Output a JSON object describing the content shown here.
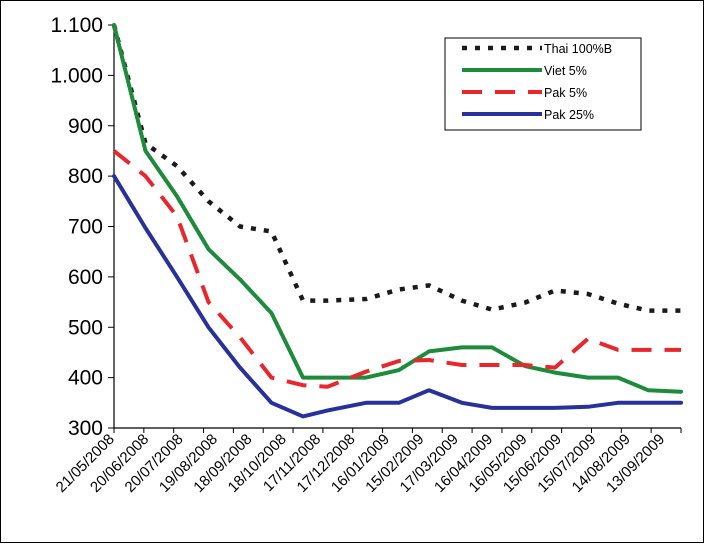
{
  "chart_data": {
    "type": "line",
    "title": "",
    "xlabel": "",
    "ylabel": "",
    "ylim": [
      300,
      1100
    ],
    "yticks": [
      300,
      400,
      500,
      600,
      700,
      800,
      900,
      1000,
      1100
    ],
    "ytick_labels": [
      "300",
      "400",
      "500",
      "600",
      "700",
      "800",
      "900",
      "1.000",
      "1.100"
    ],
    "categories": [
      "21/05/2008",
      "20/06/2008",
      "20/07/2008",
      "19/08/2008",
      "18/09/2008",
      "18/10/2008",
      "17/11/2008",
      "17/12/2008",
      "16/01/2009",
      "15/02/2009",
      "17/03/2009",
      "16/04/2009",
      "16/05/2009",
      "15/06/2009",
      "15/07/2009",
      "14/08/2009",
      "13/09/2009"
    ],
    "x_index": [
      0,
      1.15,
      2.3,
      3.45,
      4.6,
      5.75,
      6.9,
      7.8,
      9.2,
      10.4,
      11.5,
      12.7,
      13.8,
      15.0,
      16.1,
      17.3,
      18.4,
      19.5,
      20.7
    ],
    "legend_position": "top-right",
    "grid": false,
    "series": [
      {
        "name": "Thai 100%B",
        "color": "#1a1a1a",
        "style": "dotted",
        "x": [
          0,
          1.15,
          2.3,
          3.45,
          4.6,
          5.75,
          6.9,
          7.8,
          9.2,
          10.4,
          11.5,
          12.7,
          13.8,
          15.0,
          16.1,
          17.3,
          18.4,
          19.5,
          20.7
        ],
        "values": [
          1100,
          865,
          820,
          750,
          700,
          690,
          553,
          553,
          556,
          575,
          583,
          553,
          535,
          549,
          573,
          566,
          547,
          533,
          533
        ]
      },
      {
        "name": "Viet 5%",
        "color": "#1e8a3c",
        "style": "solid",
        "x": [
          0,
          1.15,
          2.3,
          3.45,
          4.6,
          5.75,
          6.9,
          7.8,
          9.2,
          10.4,
          11.5,
          12.7,
          13.8,
          15.0,
          16.1,
          17.3,
          18.4,
          19.5,
          20.7
        ],
        "values": [
          1100,
          850,
          760,
          655,
          595,
          528,
          400,
          400,
          400,
          415,
          452,
          460,
          460,
          423,
          410,
          400,
          400,
          375,
          372
        ]
      },
      {
        "name": "Pak 5%",
        "color": "#e8262b",
        "style": "dashed",
        "x": [
          0,
          1.15,
          2.3,
          3.45,
          4.6,
          5.75,
          6.9,
          7.8,
          9.2,
          10.4,
          11.5,
          12.7,
          13.8,
          15.0,
          16.1,
          17.3,
          18.4,
          19.5,
          20.7
        ],
        "values": [
          850,
          800,
          720,
          550,
          480,
          400,
          385,
          382,
          412,
          433,
          435,
          425,
          425,
          425,
          420,
          477,
          455,
          455,
          455
        ]
      },
      {
        "name": "Pak 25%",
        "color": "#27319a",
        "style": "solid",
        "x": [
          0,
          1.15,
          2.3,
          3.45,
          4.6,
          5.75,
          6.9,
          7.8,
          9.2,
          10.4,
          11.5,
          12.7,
          13.8,
          15.0,
          16.1,
          17.3,
          18.4,
          19.5,
          20.7
        ],
        "values": [
          800,
          697,
          600,
          500,
          420,
          350,
          323,
          335,
          350,
          350,
          375,
          350,
          340,
          340,
          340,
          342,
          350,
          350,
          350
        ]
      }
    ]
  }
}
